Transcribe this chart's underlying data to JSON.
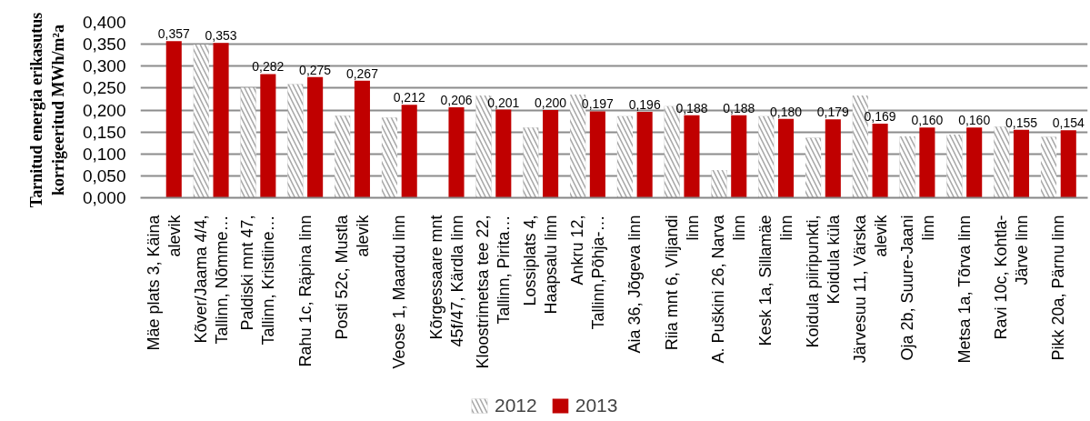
{
  "chart_data": {
    "type": "bar",
    "ylabel": "Tarnitud energia erikasutus korrigeeritud MWh/m²a",
    "categories": [
      "Mäe plats 3, Käina alevik",
      "Kõver/Jaama 4/4, Tallinn, Nõmme…",
      "Paldiski mnt 47, Tallinn, Kristiine…",
      "Rahu 1c, Räpina linn",
      "Posti 52c, Mustla alevik",
      "Veose 1, Maardu linn",
      "Kõrgessaare mnt 45f/47, Kärdla linn",
      "Kloostrimetsa tee 22, Tallinn, Pirita…",
      "Lossiplats 4, Haapsalu linn",
      "Ankru 12, Tallinn,Põhja-…",
      "Aia 36, Jõgeva linn",
      "Riia mnt 6, Viljandi linn",
      "A. Puškini 26, Narva linn",
      "Kesk 1a, Sillamäe linn",
      "Koidula piiripunkti, Koidula küla",
      "Järvesuu 11, Värska alevik",
      "Oja 2b, Suure-Jaani linn",
      "Metsa 1a, Tõrva linn",
      "Ravi 10c, Kohtla-Järve linn",
      "Pikk 20a, Pärnu linn"
    ],
    "series": [
      {
        "name": "2012",
        "color": "#a6a6a6",
        "values": [
          null,
          0.349,
          0.251,
          0.259,
          0.187,
          0.183,
          null,
          0.233,
          0.16,
          0.235,
          0.186,
          0.209,
          0.063,
          0.186,
          0.137,
          0.233,
          0.14,
          0.144,
          0.162,
          0.139
        ]
      },
      {
        "name": "2013",
        "color": "#c00000",
        "values": [
          0.357,
          0.353,
          0.282,
          0.275,
          0.267,
          0.212,
          0.206,
          0.201,
          0.2,
          0.197,
          0.196,
          0.188,
          0.188,
          0.18,
          0.179,
          0.169,
          0.16,
          0.16,
          0.155,
          0.154
        ],
        "value_labels": [
          "0,357",
          "0,353",
          "0,282",
          "0,275",
          "0,267",
          "0,212",
          "0,206",
          "0,201",
          "0,200",
          "0,197",
          "0,196",
          "0,188",
          "0,188",
          "0,180",
          "0,179",
          "0,169",
          "0,160",
          "0,160",
          "0,155",
          "0,154"
        ]
      }
    ],
    "ylim": [
      0,
      0.4
    ],
    "yticks": [
      {
        "value": 0,
        "label": "0,000"
      },
      {
        "value": 0.05,
        "label": "0,050"
      },
      {
        "value": 0.1,
        "label": "0,100"
      },
      {
        "value": 0.15,
        "label": "0,150"
      },
      {
        "value": 0.2,
        "label": "0,200"
      },
      {
        "value": 0.25,
        "label": "0,250"
      },
      {
        "value": 0.3,
        "label": "0,300"
      },
      {
        "value": 0.35,
        "label": "0,350"
      },
      {
        "value": 0.4,
        "label": "0,400"
      }
    ],
    "grid": "y",
    "legend": "bottom"
  }
}
